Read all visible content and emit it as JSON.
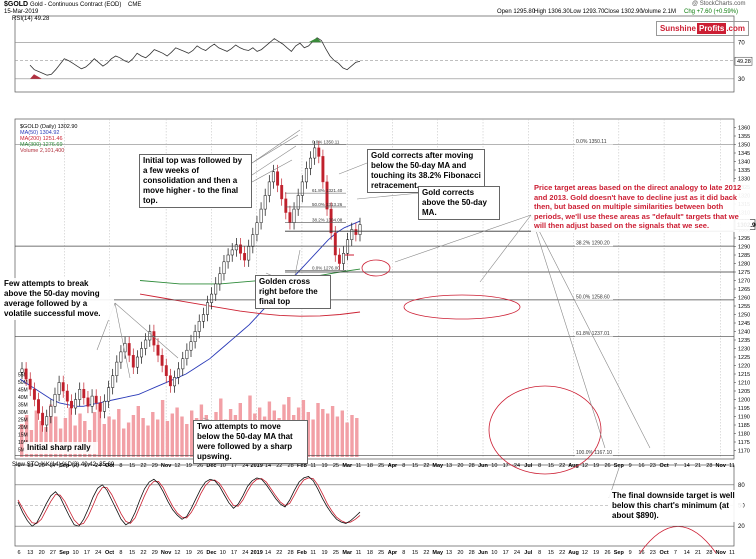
{
  "header": {
    "symbol": "$GOLD",
    "name": "Gold - Continuous Contract (EOD)",
    "exchange": "CME",
    "date": "15-Mar-2019",
    "open": "Open 1295.80",
    "high": "High 1306.30",
    "low": "Low 1293.70",
    "close": "Close 1302.90",
    "volume": "Volume 2.1M",
    "change": "Chg +7.60 (+0.59%)",
    "watermark": "@ StockCharts.com"
  },
  "logo": {
    "part1": "Sunshine",
    "part2": "Profits",
    "part3": ".com"
  },
  "colors": {
    "price": "#111111",
    "ma50": "#2a3ab8",
    "ma200": "#cc2233",
    "ma300": "#2e8b3a",
    "volume": "#f2a0a6",
    "annotation_red": "#cc1e33",
    "stoch_k": "#111111",
    "stoch_d": "#cc2233"
  },
  "rsi_panel": {
    "label": "RSI(14) 49.28",
    "y_ticks": [
      "70",
      "50",
      "30"
    ],
    "last_value": "49.28",
    "values": [
      45,
      40,
      38,
      36,
      34,
      35,
      40,
      46,
      52,
      50,
      47,
      44,
      41,
      43,
      47,
      52,
      48,
      44,
      47,
      52,
      55,
      53,
      50,
      48,
      52,
      58,
      55,
      53,
      57,
      62,
      60,
      58,
      55,
      59,
      64,
      62,
      60,
      58,
      61,
      66,
      63,
      61,
      65,
      68,
      64,
      62,
      60,
      63,
      67,
      64,
      62,
      61,
      64,
      60,
      62,
      66,
      70,
      74,
      71,
      68,
      64,
      60,
      66,
      69,
      64,
      66,
      71,
      75,
      72,
      63,
      55,
      50,
      47,
      42,
      40,
      44,
      48,
      49.28
    ]
  },
  "legend": {
    "title": "$GOLD (Daily) 1302.90",
    "ma50": "MA(50) 1304.92",
    "ma200": "MA(200) 1251.46",
    "ma300": "MA(300) 1276.69",
    "volume": "Volume 2,101,400"
  },
  "chart_data": [
    {
      "type": "line",
      "title": "$GOLD Gold - Continuous Contract (EOD) CME",
      "ylabel": "Price",
      "ylim": [
        1165,
        1365
      ],
      "y_ticks": [
        1170,
        1175,
        1180,
        1185,
        1190,
        1195,
        1200,
        1205,
        1210,
        1215,
        1220,
        1225,
        1230,
        1235,
        1240,
        1245,
        1250,
        1255,
        1260,
        1265,
        1270,
        1275,
        1280,
        1285,
        1290,
        1295,
        1300,
        1305,
        1310,
        1315,
        1320,
        1325,
        1330,
        1335,
        1340,
        1345,
        1350,
        1355,
        1360
      ],
      "x_labels": [
        "6",
        "13",
        "20",
        "27",
        "Sep",
        "10",
        "17",
        "24",
        "Oct",
        "8",
        "15",
        "22",
        "29",
        "Nov",
        "12",
        "19",
        "26",
        "Dec",
        "10",
        "17",
        "24",
        "2019",
        "14",
        "22",
        "28",
        "Feb",
        "11",
        "19",
        "25",
        "Mar",
        "11",
        "18",
        "25",
        "Apr",
        "8",
        "15",
        "22",
        "May",
        "13",
        "20",
        "28",
        "Jun",
        "10",
        "17",
        "24",
        "Jul",
        "8",
        "15",
        "22",
        "Aug",
        "12",
        "19",
        "26",
        "Sep",
        "9",
        "16",
        "23",
        "Oct",
        "7",
        "14",
        "21",
        "28",
        "Nov",
        "11"
      ],
      "price_close": [
        1218,
        1212,
        1206,
        1200,
        1192,
        1185,
        1190,
        1196,
        1203,
        1210,
        1205,
        1199,
        1195,
        1200,
        1206,
        1201,
        1196,
        1202,
        1198,
        1193,
        1199,
        1207,
        1214,
        1222,
        1228,
        1233,
        1226,
        1219,
        1225,
        1230,
        1235,
        1240,
        1232,
        1226,
        1220,
        1214,
        1208,
        1213,
        1218,
        1224,
        1229,
        1234,
        1240,
        1246,
        1250,
        1257,
        1262,
        1268,
        1274,
        1281,
        1285,
        1288,
        1291,
        1286,
        1282,
        1290,
        1297,
        1304,
        1312,
        1320,
        1328,
        1334,
        1326,
        1318,
        1310,
        1304,
        1312,
        1320,
        1328,
        1336,
        1342,
        1348,
        1343,
        1328,
        1312,
        1298,
        1285,
        1280,
        1286,
        1294,
        1300,
        1297,
        1302.9
      ],
      "ma50": [
        1212,
        1209,
        1206,
        1203,
        1200,
        1198,
        1197,
        1196,
        1196,
        1197,
        1198,
        1199,
        1200,
        1201,
        1202,
        1203,
        1205,
        1207,
        1209,
        1211,
        1213,
        1215,
        1218,
        1221,
        1224,
        1228,
        1232,
        1236,
        1240,
        1244,
        1249,
        1254,
        1259,
        1264,
        1269,
        1274,
        1279,
        1284,
        1289,
        1294,
        1298,
        1301,
        1303,
        1304.92
      ],
      "ma200": [
        1262,
        1260,
        1258,
        1256,
        1254,
        1252,
        1250.5,
        1249.5,
        1249,
        1249.2,
        1250,
        1251.46
      ],
      "ma300": [
        1270,
        1269,
        1268,
        1268,
        1268,
        1269,
        1270,
        1271,
        1272,
        1273,
        1275,
        1276.69
      ],
      "volume_millions": [
        22,
        28,
        18,
        31,
        24,
        20,
        35,
        27,
        19,
        26,
        33,
        21,
        29,
        24,
        18,
        30,
        36,
        22,
        27,
        25,
        32,
        19,
        23,
        28,
        34,
        26,
        21,
        30,
        25,
        38,
        24,
        29,
        33,
        27,
        22,
        31,
        26,
        35,
        28,
        23,
        30,
        39,
        25,
        32,
        28,
        36,
        24,
        41,
        29,
        33,
        27,
        37,
        31,
        26,
        35,
        40,
        28,
        33,
        38,
        30,
        25,
        36,
        32,
        29,
        34,
        27,
        31,
        23,
        28,
        26
      ],
      "volume_ticks": [
        "55M",
        "50M",
        "45M",
        "40M",
        "35M",
        "30M",
        "25M",
        "20M",
        "15M",
        "10M",
        "5M"
      ],
      "fibonacci": [
        {
          "label": "0.0% 1350.11",
          "value": 1350.11
        },
        {
          "label": "38.2% 1290.20",
          "value": 1290.2
        },
        {
          "label": "50.0% 1258.60",
          "value": 1258.6
        },
        {
          "label": "61.8% 1237.01",
          "value": 1237.01
        },
        {
          "label": "100.0% 1167.10",
          "value": 1167.1
        }
      ],
      "inner_fibonacci": [
        {
          "label": "0.0% 1350.11",
          "value": 1350.11
        },
        {
          "label": "61.8% 1321.40",
          "value": 1321.4
        },
        {
          "label": "50.0% 1313.26",
          "value": 1313.26
        },
        {
          "label": "38.2% 1304.08",
          "value": 1304.08
        },
        {
          "label": "0.0% 1276.00",
          "value": 1276.0
        }
      ],
      "current_price_label": "1302.90",
      "support_levels": [
        1299,
        1300,
        1275
      ]
    },
    {
      "type": "line",
      "title": "Slow STO %K(14) %D(3) 40.42, 35.69",
      "ylim": [
        0,
        100
      ],
      "y_ticks": [
        "80",
        "50",
        "20"
      ],
      "k_values": [
        55,
        40,
        28,
        20,
        25,
        38,
        52,
        64,
        70,
        62,
        48,
        34,
        22,
        20,
        30,
        45,
        62,
        75,
        80,
        72,
        58,
        44,
        30,
        22,
        26,
        40,
        58,
        74,
        84,
        88,
        82,
        70,
        56,
        44,
        36,
        30,
        34,
        46,
        60,
        74,
        84,
        88,
        86,
        78,
        66,
        54,
        46,
        52,
        64,
        78,
        86,
        90,
        88,
        80,
        70,
        60,
        52,
        48,
        58,
        72,
        84,
        90,
        92,
        86,
        74,
        60,
        48,
        38,
        30,
        26,
        24,
        28,
        34,
        40.42
      ],
      "d_values": [
        58,
        46,
        34,
        25,
        24,
        30,
        43,
        56,
        66,
        65,
        56,
        42,
        29,
        22,
        24,
        35,
        50,
        66,
        76,
        76,
        66,
        52,
        38,
        27,
        24,
        32,
        48,
        64,
        78,
        85,
        85,
        76,
        62,
        49,
        39,
        33,
        32,
        40,
        52,
        67,
        79,
        86,
        87,
        82,
        72,
        60,
        50,
        49,
        58,
        71,
        82,
        88,
        89,
        84,
        74,
        64,
        55,
        50,
        53,
        65,
        78,
        87,
        90,
        89,
        80,
        67,
        53,
        42,
        33,
        28,
        25,
        26,
        30,
        35.69
      ]
    }
  ],
  "annotations": [
    {
      "id": "initial-top",
      "text": "Initial top was followed by a few weeks of consolidation and then a move higher - to the final top."
    },
    {
      "id": "gold-corrects-moving",
      "text": "Gold corrects after moving below the 50-day MA and touching its 38.2% Fibonacci retracement."
    },
    {
      "id": "gold-corrects-above",
      "text": "Gold corrects above the 50-day MA."
    },
    {
      "id": "price-target-areas",
      "text": "Price target areas based on the direct analogy to late 2012 and 2013. Gold doesn't have to decline just as it did back then, but based on multiple similarities between both periods, we'll use these areas as \"default\" targets that we will then adjust based on the signals that we see."
    },
    {
      "id": "golden-cross",
      "text": "Golden cross right before the final top"
    },
    {
      "id": "few-attempts",
      "text": "Few attempts to break above the 50-day moving average followed by a volatile successful move."
    },
    {
      "id": "two-attempts",
      "text": "Two attempts to move below the 50-day MA that were followed by a sharp upswing."
    },
    {
      "id": "initial-rally",
      "text": "Initial sharp rally"
    },
    {
      "id": "final-downside",
      "text": "The final downside target is well below this chart's minimum (at about $890)."
    }
  ]
}
